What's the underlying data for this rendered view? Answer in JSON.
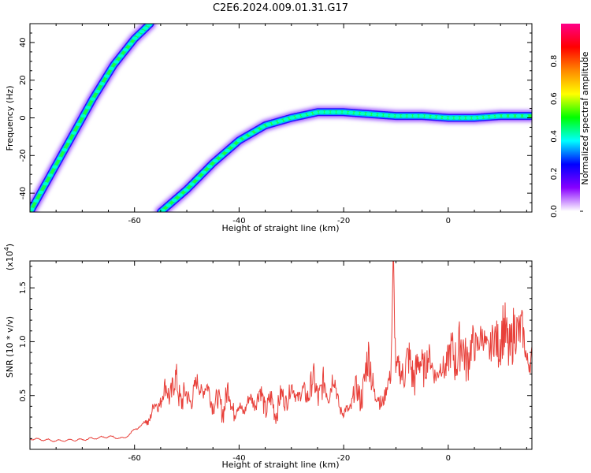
{
  "title": "C2E6.2024.009.01.31.G17",
  "chart_data": [
    {
      "type": "heatmap",
      "xlabel": "Height of straight line (km)",
      "ylabel": "Frequency (Hz)",
      "xlim": [
        -80,
        16
      ],
      "ylim": [
        -50,
        50
      ],
      "x_ticks": [
        -60,
        -40,
        -20,
        0
      ],
      "y_ticks": [
        -40,
        -20,
        0,
        20,
        40
      ],
      "colorbar": {
        "label": "Normalized spectral amplitude",
        "range": [
          0,
          1
        ],
        "ticks": [
          "0.0",
          "0.2",
          "0.4",
          "0.6",
          "0.8"
        ],
        "tick_values": [
          0.0,
          0.2,
          0.4,
          0.6,
          0.8
        ],
        "colors": [
          "#ffffff",
          "#8800ff",
          "#0000ff",
          "#00ffff",
          "#00ff00",
          "#ffff00",
          "#ff8800",
          "#ff0000",
          "#ff0088"
        ]
      },
      "tracks": [
        {
          "x": [
            -80,
            -76,
            -72,
            -68,
            -64,
            -60,
            -57
          ],
          "y": [
            -50,
            -30,
            -10,
            10,
            28,
            42,
            50
          ]
        },
        {
          "x": [
            -55,
            -50,
            -45,
            -40,
            -35,
            -30,
            -25,
            -20,
            -15,
            -10,
            -5,
            0,
            5,
            10,
            16
          ],
          "y": [
            -50,
            -38,
            -24,
            -12,
            -4,
            0,
            3,
            3,
            2,
            1,
            1,
            0,
            0,
            1,
            1
          ]
        }
      ]
    },
    {
      "type": "line",
      "xlabel": "Height of straight line (km)",
      "ylabel": "SNR (10 * v/v)",
      "scale_label": "(x10",
      "scale_exp": "4",
      "scale_close": ")",
      "xlim": [
        -80,
        16
      ],
      "ylim": [
        0,
        1.75
      ],
      "x_ticks": [
        -60,
        -40,
        -20,
        0
      ],
      "y_ticks": [
        "0.5",
        "1.0",
        "1.5"
      ],
      "y_tick_values": [
        0.5,
        1.0,
        1.5
      ],
      "line_color": "#e8403a",
      "series": [
        {
          "x": [
            -80,
            -75,
            -70,
            -65,
            -62,
            -60,
            -58,
            -56,
            -54,
            -52,
            -50,
            -48,
            -46,
            -44,
            -42,
            -40,
            -38,
            -36,
            -34,
            -32,
            -30,
            -28,
            -26,
            -24,
            -22,
            -20,
            -18,
            -16,
            -15,
            -14,
            -12,
            -11,
            -10.5,
            -10,
            -8,
            -6,
            -4,
            -2,
            0,
            2,
            4,
            6,
            8,
            10,
            12,
            14,
            15,
            16
          ],
          "y": [
            0.1,
            0.08,
            0.09,
            0.12,
            0.1,
            0.18,
            0.25,
            0.4,
            0.55,
            0.6,
            0.45,
            0.6,
            0.55,
            0.4,
            0.5,
            0.35,
            0.45,
            0.5,
            0.4,
            0.45,
            0.55,
            0.5,
            0.6,
            0.55,
            0.65,
            0.3,
            0.5,
            0.6,
            0.95,
            0.45,
            0.5,
            0.7,
            1.75,
            0.7,
            0.8,
            0.75,
            0.85,
            0.7,
            0.85,
            0.95,
            0.9,
            1.05,
            0.95,
            1.1,
            1.0,
            1.2,
            0.8,
            0.9
          ]
        }
      ]
    }
  ]
}
